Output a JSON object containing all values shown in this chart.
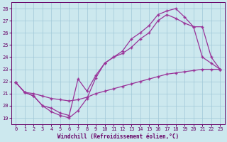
{
  "xlabel": "Windchill (Refroidissement éolien,°C)",
  "xlim": [
    -0.5,
    23.5
  ],
  "ylim": [
    18.5,
    28.5
  ],
  "xticks": [
    0,
    1,
    2,
    3,
    4,
    5,
    6,
    7,
    8,
    9,
    10,
    11,
    12,
    13,
    14,
    15,
    16,
    17,
    18,
    19,
    20,
    21,
    22,
    23
  ],
  "yticks": [
    19,
    20,
    21,
    22,
    23,
    24,
    25,
    26,
    27,
    28
  ],
  "bg_color": "#cce8ee",
  "grid_color": "#a0c8d8",
  "line_color": "#993399",
  "line1_x": [
    0,
    1,
    2,
    3,
    4,
    5,
    6,
    7,
    8,
    9,
    10,
    11,
    12,
    13,
    14,
    15,
    16,
    17,
    18,
    19,
    20,
    21,
    22,
    23
  ],
  "line1_y": [
    21.9,
    21.1,
    20.8,
    20.0,
    19.5,
    19.2,
    19.0,
    19.6,
    20.6,
    22.3,
    23.5,
    24.0,
    24.5,
    25.5,
    26.0,
    26.6,
    27.5,
    27.8,
    28.0,
    27.3,
    26.5,
    24.0,
    23.5,
    23.0
  ],
  "line2_x": [
    0,
    1,
    2,
    3,
    4,
    5,
    6,
    7,
    8,
    9,
    10,
    11,
    12,
    13,
    14,
    15,
    16,
    17,
    18,
    19,
    20,
    21,
    22,
    23
  ],
  "line2_y": [
    21.9,
    21.1,
    20.8,
    20.0,
    19.8,
    19.4,
    19.2,
    22.2,
    21.2,
    22.5,
    23.5,
    24.0,
    24.3,
    24.8,
    25.5,
    26.0,
    27.0,
    27.5,
    27.2,
    26.8,
    26.5,
    26.5,
    24.0,
    23.0
  ],
  "line3_x": [
    0,
    1,
    2,
    3,
    4,
    5,
    6,
    7,
    8,
    9,
    10,
    11,
    12,
    13,
    14,
    15,
    16,
    17,
    18,
    19,
    20,
    21,
    22,
    23
  ],
  "line3_y": [
    21.9,
    21.1,
    21.0,
    20.8,
    20.6,
    20.5,
    20.4,
    20.5,
    20.7,
    21.0,
    21.2,
    21.4,
    21.6,
    21.8,
    22.0,
    22.2,
    22.4,
    22.6,
    22.7,
    22.8,
    22.9,
    23.0,
    23.0,
    23.0
  ],
  "marker": "+",
  "markersize": 3,
  "linewidth": 0.9,
  "tick_fontsize": 5.0,
  "label_fontsize": 5.5
}
